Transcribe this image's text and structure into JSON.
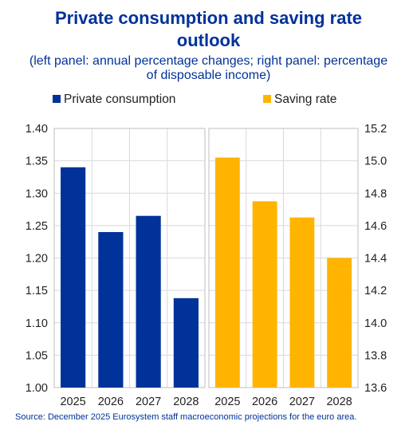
{
  "title_line1": "Private consumption and saving rate",
  "title_line2": "outlook",
  "subtitle_line1": "(left panel: annual percentage changes; right panel: percentage",
  "subtitle_line2": "of disposable income)",
  "source": "Source: December 2025 Eurosystem staff macroeconomic projections for the euro area.",
  "colors": {
    "title": "#003299",
    "consumption": "#003299",
    "saving": "#FFB400",
    "grid": "#d9d9d9",
    "axis": "#bfbfbf"
  },
  "chart_data": [
    {
      "type": "bar",
      "panel": "left",
      "categories": [
        "2025",
        "2026",
        "2027",
        "2028"
      ],
      "series": [
        {
          "name": "Private consumption",
          "values": [
            1.34,
            1.24,
            1.265,
            1.138
          ]
        }
      ],
      "ylim": [
        1.0,
        1.4
      ],
      "yticks": [
        "1.00",
        "1.05",
        "1.10",
        "1.15",
        "1.20",
        "1.25",
        "1.30",
        "1.35",
        "1.40"
      ],
      "y_axis_side": "left",
      "legend_position": "top-left"
    },
    {
      "type": "bar",
      "panel": "right",
      "categories": [
        "2025",
        "2026",
        "2027",
        "2028"
      ],
      "series": [
        {
          "name": "Saving rate",
          "values": [
            15.02,
            14.75,
            14.65,
            14.4
          ]
        }
      ],
      "ylim": [
        13.6,
        15.2
      ],
      "yticks": [
        "13.6",
        "13.8",
        "14.0",
        "14.2",
        "14.4",
        "14.6",
        "14.8",
        "15.0",
        "15.2"
      ],
      "y_axis_side": "right",
      "legend_position": "top-right"
    }
  ]
}
